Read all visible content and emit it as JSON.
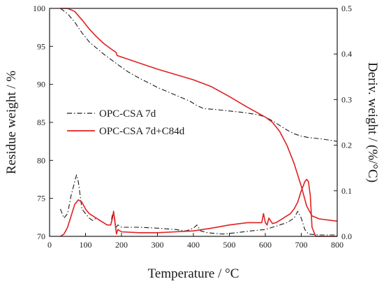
{
  "chart_data": {
    "type": "line",
    "title": "",
    "xlabel": "Temperature / °C",
    "ylabel": "Residue weight / %",
    "y2label": "Deriv. weight / (%/°C)",
    "xlim": [
      0,
      800
    ],
    "ylim": [
      70,
      100
    ],
    "y2lim": [
      0,
      0.5
    ],
    "x_ticks": [
      "0",
      "100",
      "200",
      "300",
      "400",
      "500",
      "600",
      "700",
      "800"
    ],
    "y_ticks": [
      "70",
      "75",
      "80",
      "85",
      "90",
      "95",
      "100"
    ],
    "y2_ticks": [
      "0.0",
      "0.1",
      "0.2",
      "0.3",
      "0.4",
      "0.5"
    ],
    "grid": false,
    "legend_position": "center-left",
    "series": [
      {
        "name": "OPC-CSA 7d",
        "axis": "left",
        "kind": "tg",
        "color": "#1a1a1a",
        "style": "dashdot",
        "x": [
          30,
          50,
          70,
          90,
          110,
          130,
          150,
          170,
          190,
          220,
          250,
          280,
          300,
          330,
          360,
          390,
          410,
          430,
          460,
          500,
          540,
          580,
          600,
          620,
          640,
          660,
          680,
          700,
          720,
          760,
          800
        ],
        "y": [
          100,
          99.3,
          98.2,
          96.8,
          95.6,
          94.8,
          94.0,
          93.3,
          92.6,
          91.6,
          90.8,
          90.1,
          89.6,
          89.0,
          88.4,
          87.8,
          87.2,
          86.8,
          86.7,
          86.5,
          86.3,
          86.0,
          85.7,
          85.2,
          84.6,
          84.0,
          83.5,
          83.2,
          83.0,
          82.8,
          82.5
        ]
      },
      {
        "name": "OPC-CSA 7d+C84d",
        "axis": "left",
        "kind": "tg",
        "color": "#e02020",
        "style": "solid",
        "x": [
          30,
          50,
          70,
          90,
          110,
          130,
          150,
          170,
          185,
          188,
          200,
          250,
          300,
          350,
          400,
          450,
          500,
          550,
          600,
          620,
          640,
          660,
          680,
          700,
          715,
          730,
          750,
          800
        ],
        "y": [
          100,
          100,
          99.6,
          98.5,
          97.3,
          96.3,
          95.4,
          94.7,
          94.2,
          93.8,
          93.6,
          92.8,
          92.0,
          91.3,
          90.6,
          89.7,
          88.4,
          87.0,
          85.7,
          85.0,
          83.8,
          82.0,
          79.6,
          76.6,
          74.0,
          72.7,
          72.3,
          72.0
        ]
      },
      {
        "name": "OPC-CSA 7d",
        "axis": "right",
        "kind": "dtg",
        "color": "#1a1a1a",
        "style": "dashdot",
        "x": [
          30,
          40,
          50,
          60,
          70,
          75,
          80,
          85,
          90,
          100,
          110,
          120,
          130,
          140,
          150,
          160,
          170,
          175,
          180,
          185,
          190,
          200,
          250,
          300,
          350,
          380,
          400,
          410,
          420,
          440,
          480,
          520,
          560,
          600,
          620,
          640,
          660,
          680,
          690,
          700,
          710,
          720,
          750,
          800
        ],
        "y": [
          0.06,
          0.04,
          0.05,
          0.09,
          0.12,
          0.135,
          0.12,
          0.09,
          0.06,
          0.05,
          0.04,
          0.035,
          0.04,
          0.035,
          0.03,
          0.025,
          0.025,
          0.05,
          0.045,
          0.02,
          0.025,
          0.02,
          0.02,
          0.018,
          0.015,
          0.012,
          0.018,
          0.025,
          0.012,
          0.008,
          0.005,
          0.008,
          0.012,
          0.015,
          0.02,
          0.025,
          0.03,
          0.04,
          0.055,
          0.04,
          0.015,
          0.005,
          0.003,
          0.003
        ]
      },
      {
        "name": "OPC-CSA 7d+C84d",
        "axis": "right",
        "kind": "dtg",
        "color": "#e02020",
        "style": "solid",
        "x": [
          30,
          40,
          50,
          60,
          70,
          80,
          90,
          100,
          110,
          120,
          130,
          140,
          150,
          160,
          170,
          175,
          178,
          182,
          186,
          190,
          200,
          250,
          300,
          350,
          400,
          450,
          500,
          550,
          590,
          595,
          600,
          605,
          610,
          620,
          630,
          640,
          650,
          660,
          670,
          680,
          690,
          700,
          705,
          710,
          715,
          720,
          725,
          730,
          740,
          760,
          800
        ],
        "y": [
          0.0,
          0.005,
          0.02,
          0.045,
          0.07,
          0.08,
          0.075,
          0.06,
          0.05,
          0.045,
          0.04,
          0.035,
          0.03,
          0.025,
          0.025,
          0.04,
          0.055,
          0.03,
          0.005,
          0.015,
          0.01,
          0.008,
          0.008,
          0.01,
          0.012,
          0.018,
          0.025,
          0.03,
          0.03,
          0.05,
          0.03,
          0.025,
          0.04,
          0.028,
          0.03,
          0.035,
          0.04,
          0.045,
          0.05,
          0.06,
          0.075,
          0.1,
          0.11,
          0.12,
          0.125,
          0.12,
          0.09,
          0.02,
          0.0,
          0.0,
          0.0
        ]
      }
    ],
    "legend": [
      {
        "label": "OPC-CSA 7d",
        "color": "#1a1a1a",
        "style": "dashdot"
      },
      {
        "label": "OPC-CSA 7d+C84d",
        "color": "#e02020",
        "style": "solid"
      }
    ]
  }
}
